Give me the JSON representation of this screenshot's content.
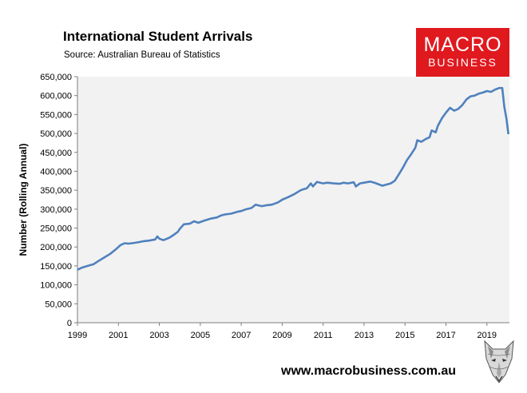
{
  "header": {
    "title": "International Student Arrivals",
    "subtitle": "Source: Australian Bureau of Statistics"
  },
  "logo": {
    "line1": "MACRO",
    "line2": "BUSINESS"
  },
  "footer": {
    "url": "www.macrobusiness.com.au"
  },
  "colors": {
    "line": "#4f81bd",
    "plot_bg": "#f2f2f2",
    "logo_bg": "#e0191f"
  },
  "chart_data": {
    "type": "line",
    "title": "International Student Arrivals",
    "subtitle": "Source: Australian Bureau of Statistics",
    "xlabel": "",
    "ylabel": "Number (Rolling Annual)",
    "xlim": [
      1999,
      2020.1
    ],
    "ylim": [
      0,
      650000
    ],
    "x_ticks": [
      1999,
      2001,
      2003,
      2005,
      2007,
      2009,
      2011,
      2013,
      2015,
      2017,
      2019
    ],
    "y_ticks": [
      0,
      50000,
      100000,
      150000,
      200000,
      250000,
      300000,
      350000,
      400000,
      450000,
      500000,
      550000,
      600000,
      650000
    ],
    "y_tick_labels": [
      "0",
      "50,000",
      "100,000",
      "150,000",
      "200,000",
      "250,000",
      "300,000",
      "350,000",
      "400,000",
      "450,000",
      "500,000",
      "550,000",
      "600,000",
      "650,000"
    ],
    "grid": false,
    "legend": "none",
    "series": [
      {
        "x": [
          1999.0,
          1999.2,
          1999.5,
          1999.8,
          2000.0,
          2000.3,
          2000.6,
          2000.9,
          2001.1,
          2001.3,
          2001.5,
          2001.8,
          2002.0,
          2002.2,
          2002.5,
          2002.8,
          2002.9,
          2003.0,
          2003.2,
          2003.5,
          2003.7,
          2003.9,
          2004.0,
          2004.2,
          2004.5,
          2004.7,
          2004.9,
          2005.2,
          2005.5,
          2005.8,
          2006.0,
          2006.2,
          2006.5,
          2006.8,
          2007.0,
          2007.2,
          2007.5,
          2007.7,
          2008.0,
          2008.2,
          2008.5,
          2008.8,
          2009.0,
          2009.3,
          2009.6,
          2009.9,
          2010.0,
          2010.2,
          2010.4,
          2010.5,
          2010.7,
          2011.0,
          2011.2,
          2011.5,
          2011.8,
          2012.0,
          2012.2,
          2012.5,
          2012.6,
          2012.8,
          2013.0,
          2013.3,
          2013.5,
          2013.7,
          2013.9,
          2014.1,
          2014.3,
          2014.5,
          2014.7,
          2014.9,
          2015.1,
          2015.3,
          2015.5,
          2015.6,
          2015.8,
          2016.0,
          2016.2,
          2016.3,
          2016.5,
          2016.6,
          2016.8,
          2017.0,
          2017.2,
          2017.4,
          2017.6,
          2017.8,
          2018.0,
          2018.2,
          2018.4,
          2018.6,
          2018.8,
          2019.0,
          2019.2,
          2019.4,
          2019.6,
          2019.75,
          2019.85,
          2019.95,
          2020.05
        ],
        "y": [
          140000,
          145000,
          150000,
          155000,
          162000,
          172000,
          182000,
          195000,
          205000,
          210000,
          209000,
          211000,
          213000,
          215000,
          217000,
          220000,
          228000,
          222000,
          218000,
          225000,
          232000,
          240000,
          248000,
          260000,
          262000,
          268000,
          264000,
          270000,
          275000,
          278000,
          283000,
          286000,
          288000,
          293000,
          295000,
          299000,
          303000,
          312000,
          308000,
          310000,
          312000,
          318000,
          325000,
          332000,
          340000,
          350000,
          352000,
          355000,
          368000,
          360000,
          372000,
          368000,
          370000,
          368000,
          367000,
          370000,
          368000,
          371000,
          360000,
          368000,
          370000,
          373000,
          370000,
          366000,
          362000,
          365000,
          368000,
          375000,
          392000,
          410000,
          430000,
          445000,
          462000,
          482000,
          478000,
          485000,
          490000,
          508000,
          503000,
          520000,
          540000,
          555000,
          568000,
          560000,
          565000,
          575000,
          590000,
          598000,
          600000,
          605000,
          608000,
          612000,
          610000,
          616000,
          620000,
          620000,
          570000,
          540000,
          498000
        ]
      }
    ]
  }
}
